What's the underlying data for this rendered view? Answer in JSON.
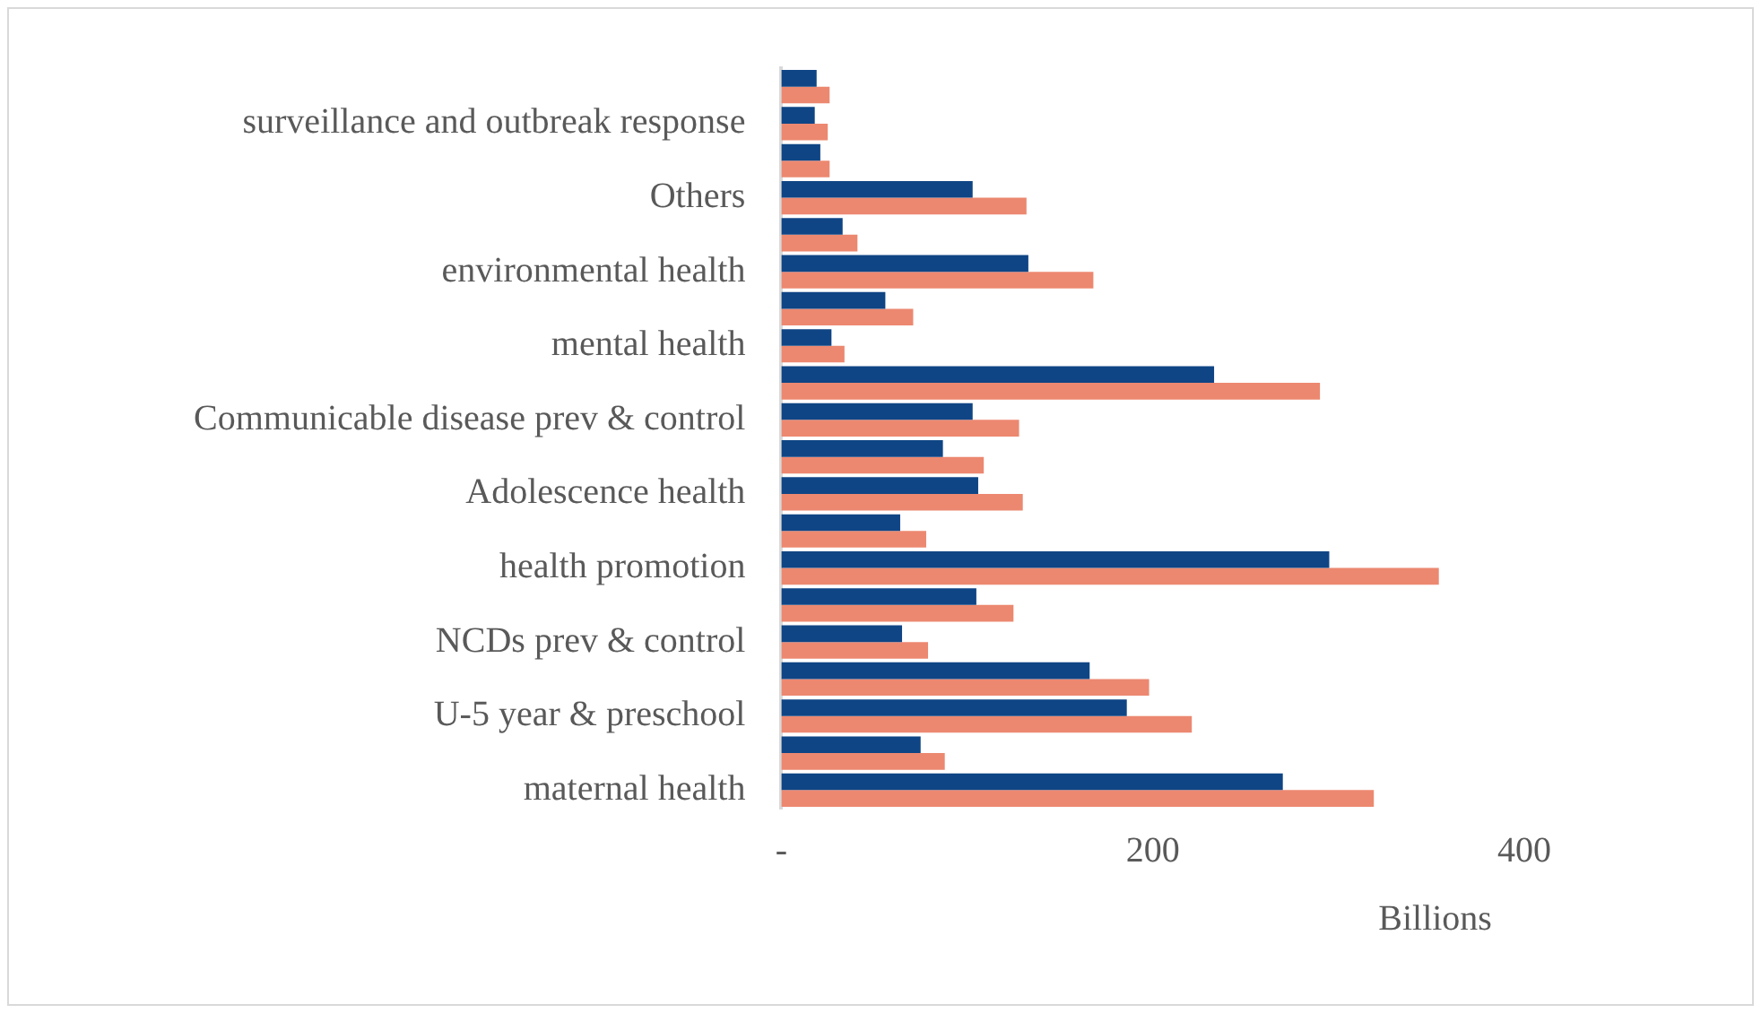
{
  "chart_data": {
    "type": "bar",
    "orientation": "horizontal",
    "xlabel": "Billions",
    "categories": [
      null,
      "surveillance and outbreak response",
      null,
      "Others",
      null,
      "environmental health",
      null,
      "mental health",
      null,
      "Communicable disease prev & control",
      null,
      "Adolescence health",
      null,
      "health promotion",
      null,
      "NCDs prev & control",
      null,
      "U-5 year & preschool",
      null,
      "maternal health"
    ],
    "series": [
      {
        "color": "#0f4585",
        "values": [
          19,
          18,
          21,
          103,
          33,
          133,
          56,
          27,
          233,
          103,
          87,
          106,
          64,
          295,
          105,
          65,
          166,
          186,
          75,
          270
        ]
      },
      {
        "color": "#ec8870",
        "values": [
          26,
          25,
          26,
          132,
          41,
          168,
          71,
          34,
          290,
          128,
          109,
          130,
          78,
          354,
          125,
          79,
          198,
          221,
          88,
          319
        ]
      }
    ],
    "xlim": [
      0,
      400
    ],
    "xticks": [
      {
        "value": 0,
        "label": "-"
      },
      200,
      400
    ],
    "grid": false,
    "legend": false
  }
}
